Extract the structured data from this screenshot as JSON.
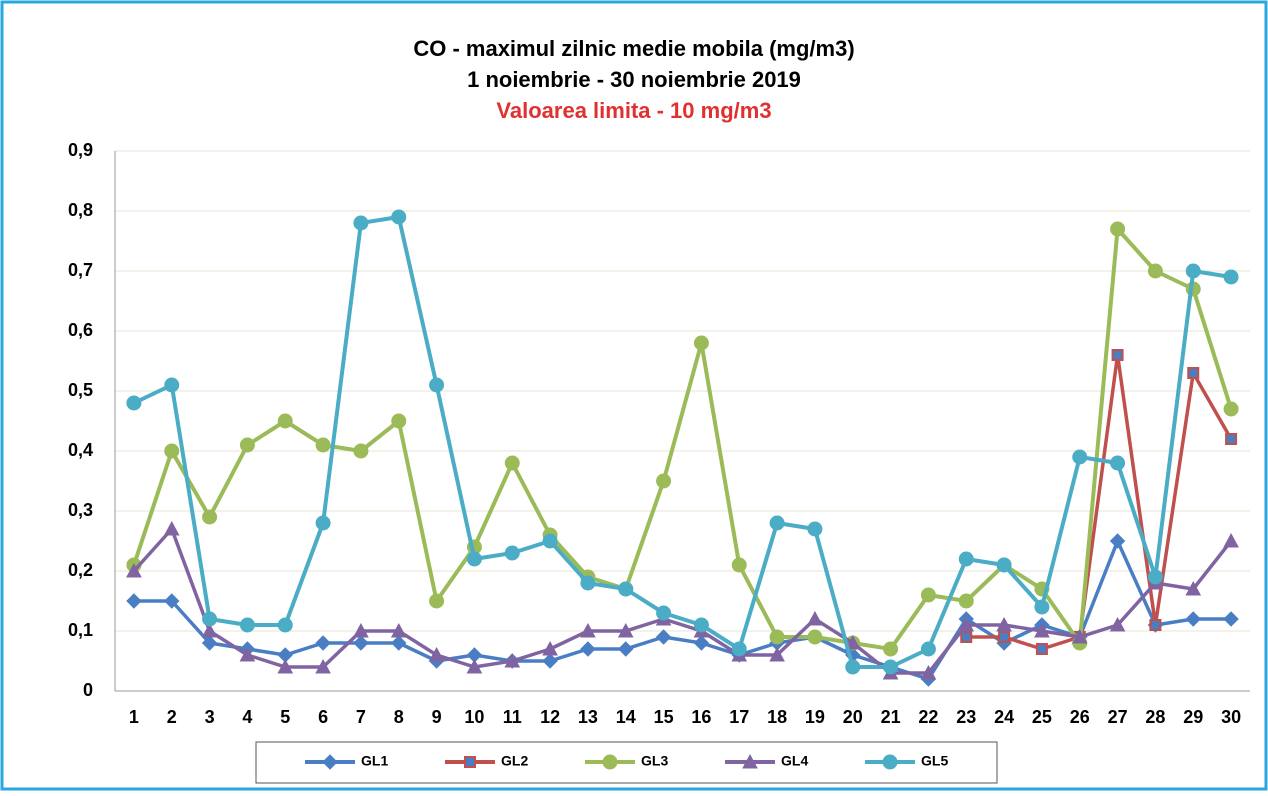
{
  "chart_data": {
    "type": "line",
    "title": "CO - maximul zilnic medie mobila (mg/m3)",
    "subtitle": "1 noiembrie - 30 noiembrie 2019",
    "annotation": "Valoarea limita - 10 mg/m3",
    "annotation_color": "#e03030",
    "categories": [
      "1",
      "2",
      "3",
      "4",
      "5",
      "6",
      "7",
      "8",
      "9",
      "10",
      "11",
      "12",
      "13",
      "14",
      "15",
      "16",
      "17",
      "18",
      "19",
      "20",
      "21",
      "22",
      "23",
      "24",
      "25",
      "26",
      "27",
      "28",
      "29",
      "30"
    ],
    "series": [
      {
        "name": "GL1",
        "color": "#4a7ec4",
        "marker": "diamond",
        "values": [
          0.15,
          0.15,
          0.08,
          0.07,
          0.06,
          0.08,
          0.08,
          0.08,
          0.05,
          0.06,
          0.05,
          0.05,
          0.07,
          0.07,
          0.09,
          0.08,
          0.06,
          0.08,
          0.09,
          0.06,
          0.04,
          0.02,
          0.12,
          0.08,
          0.11,
          0.09,
          0.25,
          0.11,
          0.12,
          0.12
        ]
      },
      {
        "name": "GL2",
        "color": "#c0504d",
        "marker": "square",
        "values": [
          null,
          null,
          null,
          null,
          null,
          null,
          null,
          null,
          null,
          null,
          null,
          null,
          null,
          null,
          null,
          null,
          null,
          null,
          null,
          null,
          null,
          null,
          0.09,
          0.09,
          0.07,
          0.09,
          0.56,
          0.11,
          0.53,
          0.42
        ]
      },
      {
        "name": "GL3",
        "color": "#9bbb59",
        "marker": "circle",
        "values": [
          0.21,
          0.4,
          0.29,
          0.41,
          0.45,
          0.41,
          0.4,
          0.45,
          0.15,
          0.24,
          0.38,
          0.26,
          0.19,
          0.17,
          0.35,
          0.58,
          0.21,
          0.09,
          0.09,
          0.08,
          0.07,
          0.16,
          0.15,
          0.21,
          0.17,
          0.08,
          0.77,
          0.7,
          0.67,
          0.47
        ]
      },
      {
        "name": "GL4",
        "color": "#8064a2",
        "marker": "triangle",
        "values": [
          0.2,
          0.27,
          0.1,
          0.06,
          0.04,
          0.04,
          0.1,
          0.1,
          0.06,
          0.04,
          0.05,
          0.07,
          0.1,
          0.1,
          0.12,
          0.1,
          0.06,
          0.06,
          0.12,
          0.08,
          0.03,
          0.03,
          0.11,
          0.11,
          0.1,
          0.09,
          0.11,
          0.18,
          0.17,
          0.25
        ]
      },
      {
        "name": "GL5",
        "color": "#4bacc6",
        "marker": "circle",
        "values": [
          0.48,
          0.51,
          0.12,
          0.11,
          0.11,
          0.28,
          0.78,
          0.79,
          0.51,
          0.22,
          0.23,
          0.25,
          0.18,
          0.17,
          0.13,
          0.11,
          0.07,
          0.28,
          0.27,
          0.04,
          0.04,
          0.07,
          0.22,
          0.21,
          0.14,
          0.39,
          0.38,
          0.19,
          0.7,
          0.69
        ]
      }
    ],
    "ylim": [
      0,
      0.9
    ],
    "yticks": [
      {
        "value": 0,
        "label": "0"
      },
      {
        "value": 0.1,
        "label": "0,1"
      },
      {
        "value": 0.2,
        "label": "0,2"
      },
      {
        "value": 0.3,
        "label": "0,3"
      },
      {
        "value": 0.4,
        "label": "0,4"
      },
      {
        "value": 0.5,
        "label": "0,5"
      },
      {
        "value": 0.6,
        "label": "0,6"
      },
      {
        "value": 0.7,
        "label": "0,7"
      },
      {
        "value": 0.8,
        "label": "0,8"
      },
      {
        "value": 0.9,
        "label": "0,9"
      }
    ],
    "grid": true
  }
}
